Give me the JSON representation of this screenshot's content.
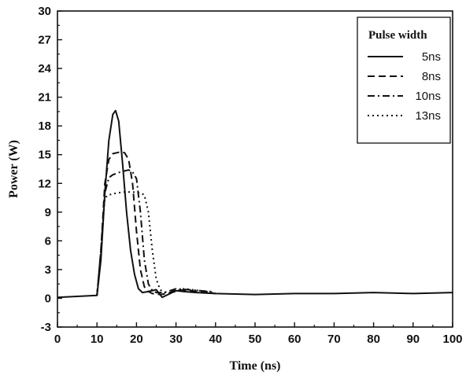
{
  "chart_data": {
    "type": "line",
    "title": "",
    "xlabel": "Time (ns)",
    "ylabel": "Power (W)",
    "xlim": [
      0,
      100
    ],
    "ylim": [
      -3,
      30
    ],
    "xticks": [
      0,
      10,
      20,
      30,
      40,
      50,
      60,
      70,
      80,
      90,
      100
    ],
    "yticks": [
      -3,
      0,
      3,
      6,
      9,
      12,
      15,
      18,
      21,
      24,
      27,
      30
    ],
    "grid": false,
    "legend": {
      "title": "Pulse width",
      "position": "top-right"
    },
    "series": [
      {
        "name": "5ns",
        "dash": "solid",
        "x": [
          0,
          5,
          10,
          11,
          12,
          13,
          14,
          14.7,
          15.5,
          16.5,
          17.5,
          18.5,
          19.5,
          20.5,
          21.5,
          23,
          25,
          26.5,
          28,
          30,
          32,
          35,
          40,
          50,
          60,
          70,
          80,
          90,
          100
        ],
        "y": [
          0.1,
          0.2,
          0.3,
          4,
          11,
          16.5,
          19.2,
          19.6,
          18.5,
          14,
          9,
          5,
          2.5,
          1,
          0.6,
          0.7,
          0.9,
          0.1,
          0.4,
          0.8,
          0.7,
          0.6,
          0.5,
          0.4,
          0.5,
          0.5,
          0.6,
          0.5,
          0.6
        ]
      },
      {
        "name": "8ns",
        "dash": "dashed",
        "x": [
          10,
          11,
          12,
          13,
          14,
          15,
          16,
          17,
          18,
          19,
          20,
          21,
          22,
          23,
          24,
          26,
          28,
          30,
          33,
          36,
          40
        ],
        "y": [
          0.3,
          5,
          12,
          14.5,
          15.1,
          15.2,
          15.3,
          15.2,
          14.5,
          12,
          7,
          3,
          1.2,
          0.7,
          0.5,
          0.4,
          0.5,
          0.9,
          0.8,
          0.7,
          0.5
        ]
      },
      {
        "name": "10ns",
        "dash": "dashdot",
        "x": [
          10,
          11,
          12,
          13,
          14,
          16,
          18,
          19,
          20,
          21,
          22,
          23,
          24,
          25,
          27,
          30,
          33,
          36,
          39
        ],
        "y": [
          0.3,
          5,
          11,
          12.6,
          12.9,
          13.2,
          13.4,
          13.2,
          12.5,
          9,
          4,
          1.5,
          0.8,
          0.6,
          0.6,
          1,
          0.9,
          0.8,
          0.7
        ]
      },
      {
        "name": "13ns",
        "dash": "dotted",
        "x": [
          10,
          11,
          12,
          13,
          15,
          17,
          19,
          21,
          22,
          23,
          24,
          25,
          26,
          27,
          29,
          32,
          36,
          40
        ],
        "y": [
          0.3,
          5,
          10.5,
          10.8,
          11,
          11.1,
          11.1,
          11,
          10.8,
          9,
          5,
          2,
          0.9,
          0.6,
          0.6,
          1,
          0.8,
          0.6
        ]
      }
    ]
  }
}
